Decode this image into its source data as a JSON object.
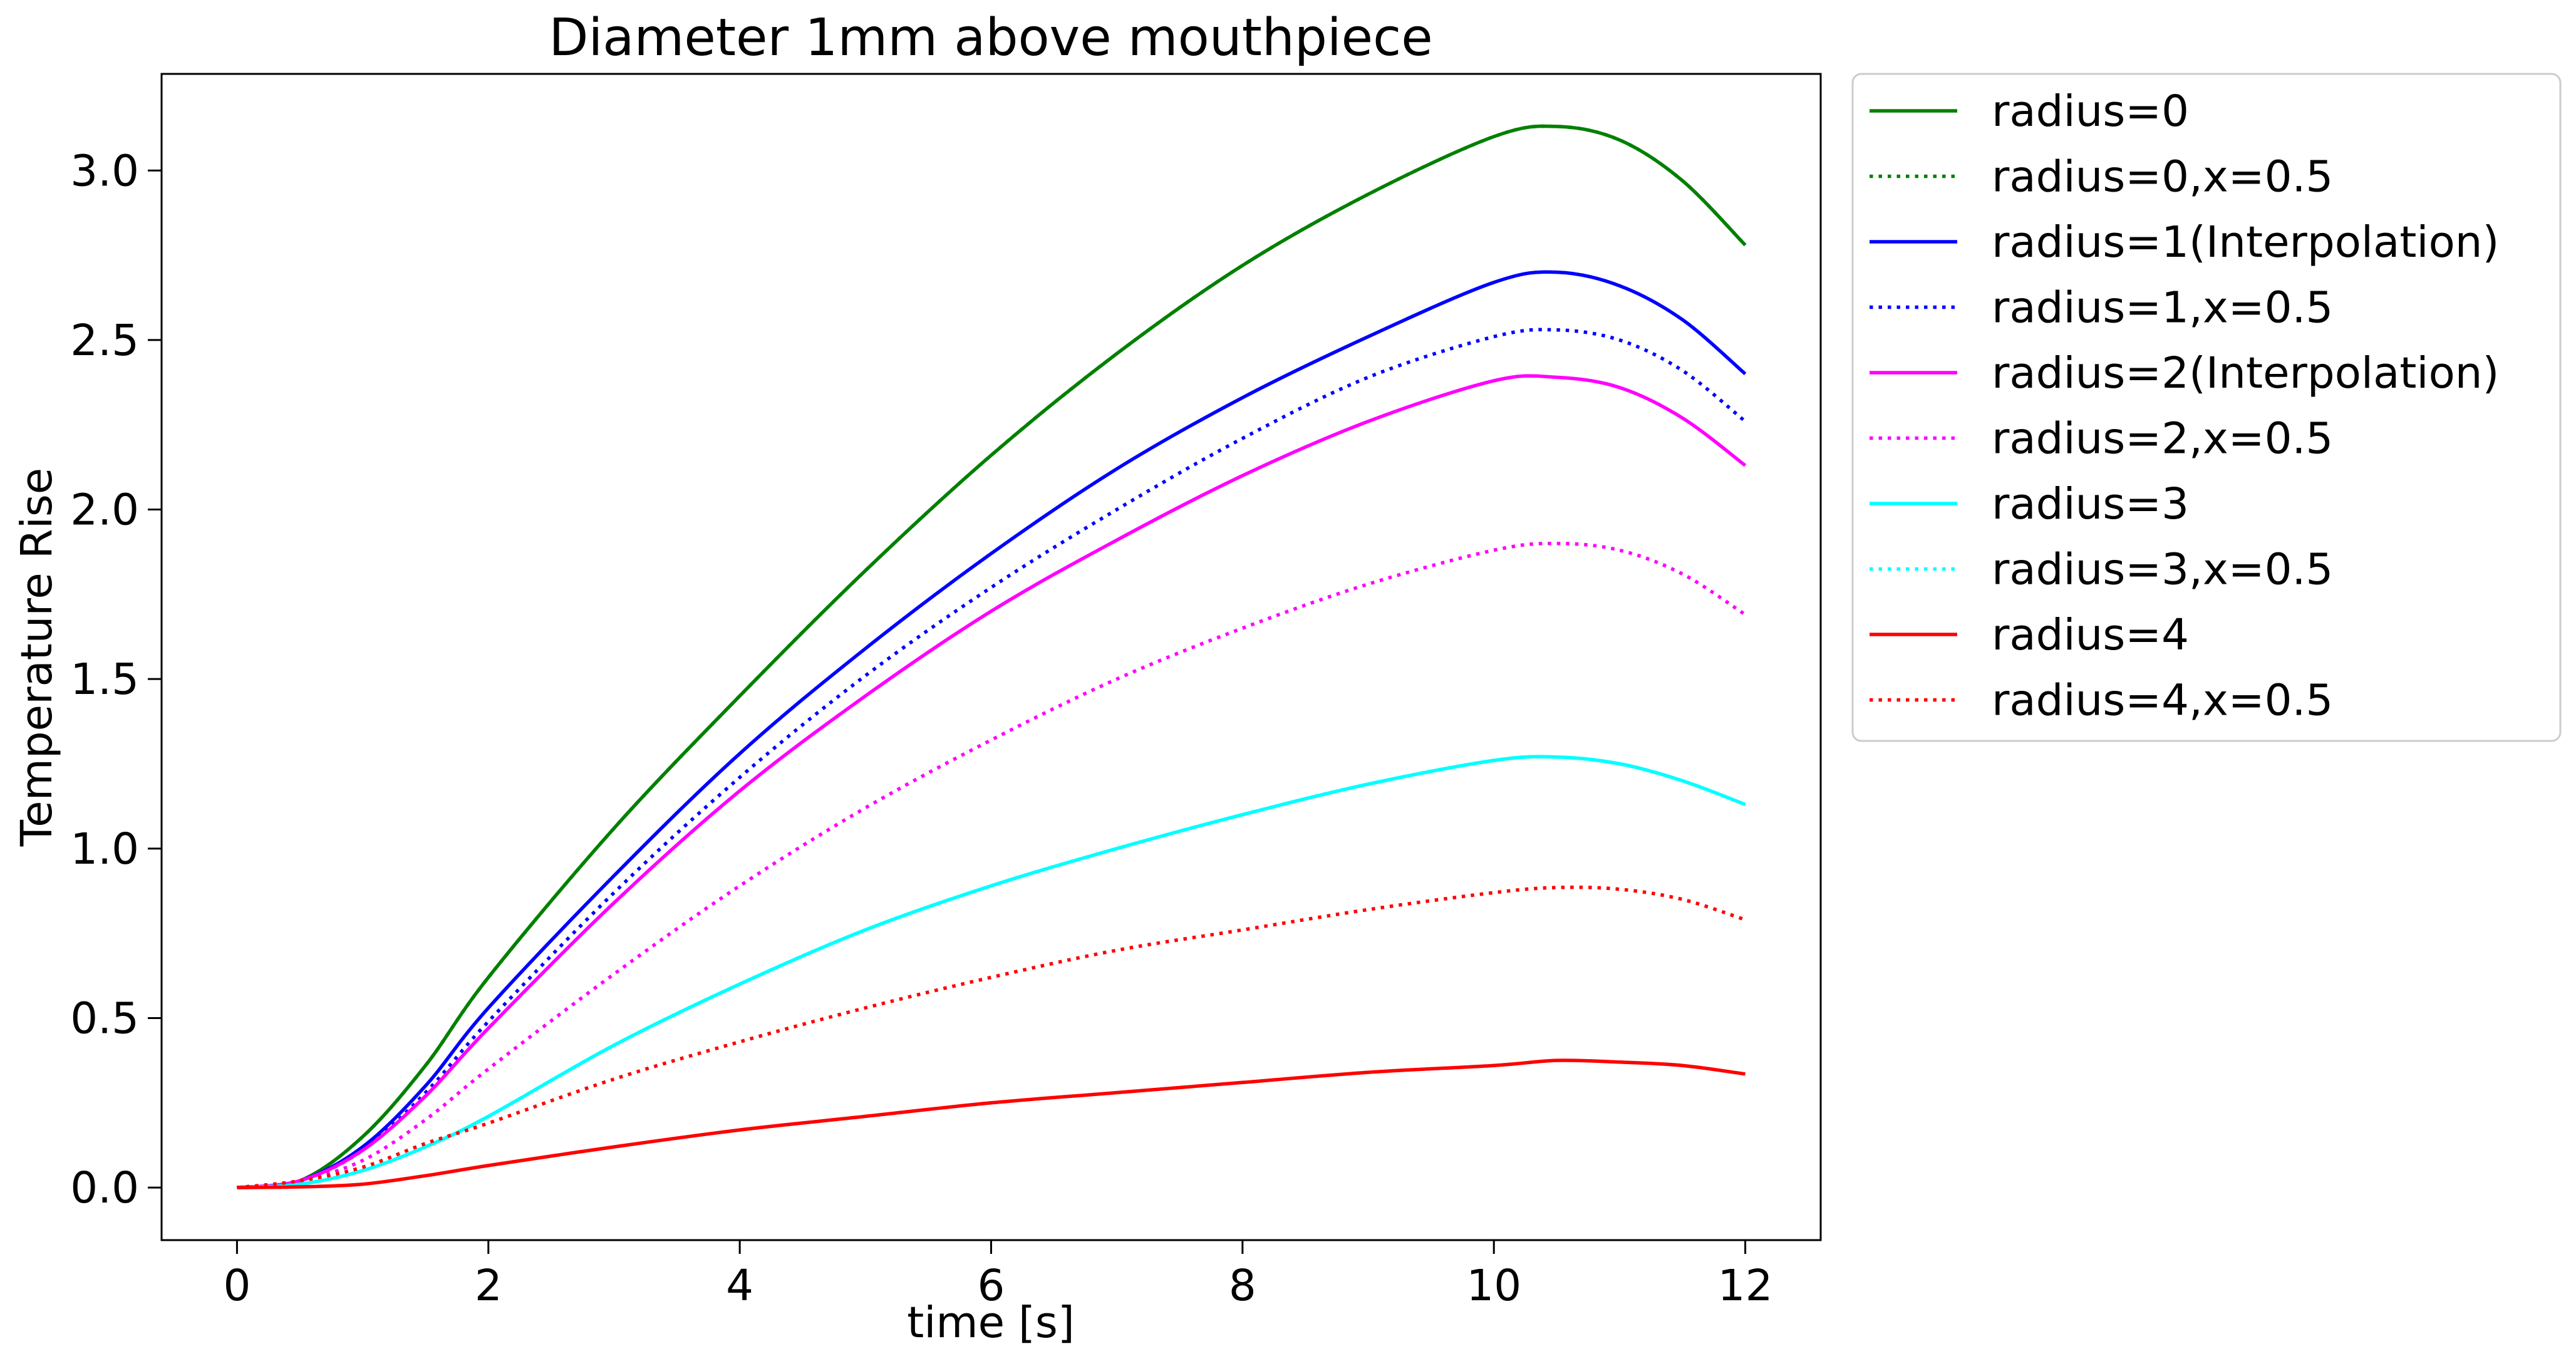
{
  "chart_data": {
    "type": "line",
    "title": "Diameter 1mm above mouthpiece",
    "xlabel": "time [s]",
    "ylabel": "Temperature Rise",
    "xlim": [
      -0.6,
      12.6
    ],
    "ylim": [
      -0.155,
      3.285
    ],
    "xticks": [
      0,
      2,
      4,
      6,
      8,
      10,
      12
    ],
    "xtick_labels": [
      "0",
      "2",
      "4",
      "6",
      "8",
      "10",
      "12"
    ],
    "yticks": [
      0.0,
      0.5,
      1.0,
      1.5,
      2.0,
      2.5,
      3.0
    ],
    "ytick_labels": [
      "0.0",
      "0.5",
      "1.0",
      "1.5",
      "2.0",
      "2.5",
      "3.0"
    ],
    "grid": false,
    "legend_position": "outside-right-top",
    "x": [
      0,
      0.5,
      1,
      1.5,
      2,
      3,
      4,
      5,
      6,
      7,
      8,
      9,
      10,
      10.5,
      11,
      11.5,
      12
    ],
    "series": [
      {
        "name": "radius=0",
        "color": "#008000",
        "style": "solid",
        "values": [
          0,
          0.02,
          0.15,
          0.36,
          0.62,
          1.06,
          1.45,
          1.82,
          2.16,
          2.46,
          2.72,
          2.93,
          3.1,
          3.13,
          3.09,
          2.97,
          2.78
        ]
      },
      {
        "name": "radius=0,x=0.5",
        "color": "#008000",
        "style": "dotted",
        "values": [
          0,
          0.02,
          0.15,
          0.36,
          0.62,
          1.06,
          1.45,
          1.82,
          2.16,
          2.46,
          2.72,
          2.93,
          3.1,
          3.13,
          3.09,
          2.97,
          2.78
        ]
      },
      {
        "name": "radius=1(Interpolation)",
        "color": "#0000ff",
        "style": "solid",
        "values": [
          0,
          0.02,
          0.12,
          0.3,
          0.53,
          0.92,
          1.28,
          1.59,
          1.87,
          2.12,
          2.33,
          2.51,
          2.67,
          2.7,
          2.66,
          2.56,
          2.4
        ]
      },
      {
        "name": "radius=1,x=0.5",
        "color": "#0000ff",
        "style": "dotted",
        "values": [
          0,
          0.02,
          0.11,
          0.28,
          0.49,
          0.87,
          1.21,
          1.51,
          1.77,
          2.0,
          2.21,
          2.39,
          2.51,
          2.53,
          2.5,
          2.41,
          2.26
        ]
      },
      {
        "name": "radius=2(Interpolation)",
        "color": "#ff00ff",
        "style": "solid",
        "values": [
          0,
          0.02,
          0.11,
          0.27,
          0.47,
          0.84,
          1.17,
          1.45,
          1.7,
          1.91,
          2.1,
          2.26,
          2.38,
          2.39,
          2.36,
          2.27,
          2.13
        ]
      },
      {
        "name": "radius=2,x=0.5",
        "color": "#ff00ff",
        "style": "dotted",
        "values": [
          0,
          0.02,
          0.08,
          0.2,
          0.35,
          0.63,
          0.89,
          1.12,
          1.32,
          1.5,
          1.65,
          1.78,
          1.88,
          1.9,
          1.88,
          1.81,
          1.69
        ]
      },
      {
        "name": "radius=3",
        "color": "#00ffff",
        "style": "solid",
        "values": [
          0,
          0.01,
          0.05,
          0.12,
          0.21,
          0.42,
          0.6,
          0.76,
          0.89,
          1.0,
          1.1,
          1.19,
          1.26,
          1.27,
          1.25,
          1.2,
          1.13
        ]
      },
      {
        "name": "radius=3,x=0.5",
        "color": "#00ffff",
        "style": "dotted",
        "values": [
          0,
          0.01,
          0.05,
          0.12,
          0.21,
          0.42,
          0.6,
          0.76,
          0.89,
          1.0,
          1.1,
          1.19,
          1.26,
          1.27,
          1.25,
          1.2,
          1.13
        ]
      },
      {
        "name": "radius=4",
        "color": "#ff0000",
        "style": "solid",
        "values": [
          0,
          0.002,
          0.01,
          0.035,
          0.065,
          0.12,
          0.17,
          0.21,
          0.25,
          0.28,
          0.31,
          0.34,
          0.36,
          0.375,
          0.37,
          0.36,
          0.335
        ]
      },
      {
        "name": "radius=4,x=0.5",
        "color": "#ff0000",
        "style": "dotted",
        "values": [
          0,
          0.02,
          0.06,
          0.13,
          0.19,
          0.32,
          0.43,
          0.53,
          0.62,
          0.7,
          0.76,
          0.82,
          0.87,
          0.885,
          0.88,
          0.85,
          0.79
        ]
      }
    ]
  }
}
